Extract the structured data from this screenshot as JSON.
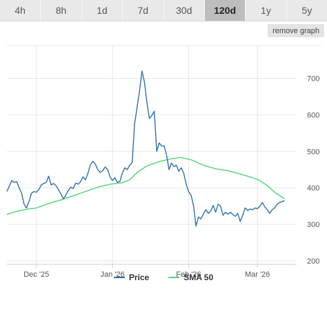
{
  "range_tabs": [
    {
      "label": "4h",
      "active": false
    },
    {
      "label": "8h",
      "active": false
    },
    {
      "label": "1d",
      "active": false
    },
    {
      "label": "7d",
      "active": false
    },
    {
      "label": "30d",
      "active": false
    },
    {
      "label": "120d",
      "active": true
    },
    {
      "label": "1y",
      "active": false
    },
    {
      "label": "5y",
      "active": false
    }
  ],
  "remove_graph_label": "remove graph",
  "chart_data": {
    "type": "line",
    "title": "",
    "xlabel": "",
    "ylabel": "",
    "ylim": [
      200,
      750
    ],
    "xlim": [
      "2025-11-19",
      "2026-03-20"
    ],
    "y_ticks": [
      200,
      300,
      400,
      500,
      600,
      700
    ],
    "x_ticks": [
      {
        "label": "Dec '25",
        "date": "2025-12-01"
      },
      {
        "label": "Jan '26",
        "date": "2026-01-01"
      },
      {
        "label": "Feb '26",
        "date": "2026-02-01"
      },
      {
        "label": "Mar '26",
        "date": "2026-03-01"
      }
    ],
    "grid": true,
    "legend_position": "bottom",
    "series": [
      {
        "name": "Price",
        "color": "#2f6fa8",
        "points": [
          [
            "2025-11-19",
            390
          ],
          [
            "2025-11-20",
            405
          ],
          [
            "2025-11-21",
            420
          ],
          [
            "2025-11-22",
            415
          ],
          [
            "2025-11-23",
            417
          ],
          [
            "2025-11-24",
            400
          ],
          [
            "2025-11-25",
            385
          ],
          [
            "2025-11-26",
            355
          ],
          [
            "2025-11-27",
            345
          ],
          [
            "2025-11-28",
            362
          ],
          [
            "2025-11-29",
            385
          ],
          [
            "2025-11-30",
            390
          ],
          [
            "2025-12-01",
            388
          ],
          [
            "2025-12-02",
            395
          ],
          [
            "2025-12-03",
            408
          ],
          [
            "2025-12-04",
            412
          ],
          [
            "2025-12-05",
            415
          ],
          [
            "2025-12-06",
            432
          ],
          [
            "2025-12-07",
            408
          ],
          [
            "2025-12-08",
            412
          ],
          [
            "2025-12-09",
            406
          ],
          [
            "2025-12-10",
            395
          ],
          [
            "2025-12-11",
            383
          ],
          [
            "2025-12-12",
            370
          ],
          [
            "2025-12-13",
            380
          ],
          [
            "2025-12-14",
            393
          ],
          [
            "2025-12-15",
            402
          ],
          [
            "2025-12-16",
            398
          ],
          [
            "2025-12-17",
            413
          ],
          [
            "2025-12-18",
            410
          ],
          [
            "2025-12-19",
            417
          ],
          [
            "2025-12-20",
            430
          ],
          [
            "2025-12-21",
            422
          ],
          [
            "2025-12-22",
            440
          ],
          [
            "2025-12-23",
            463
          ],
          [
            "2025-12-24",
            473
          ],
          [
            "2025-12-25",
            465
          ],
          [
            "2025-12-26",
            450
          ],
          [
            "2025-12-27",
            442
          ],
          [
            "2025-12-28",
            447
          ],
          [
            "2025-12-29",
            457
          ],
          [
            "2025-12-30",
            450
          ],
          [
            "2025-12-31",
            430
          ],
          [
            "2026-01-01",
            420
          ],
          [
            "2026-01-02",
            428
          ],
          [
            "2026-01-03",
            415
          ],
          [
            "2026-01-04",
            418
          ],
          [
            "2026-01-05",
            440
          ],
          [
            "2026-01-06",
            455
          ],
          [
            "2026-01-07",
            450
          ],
          [
            "2026-01-08",
            462
          ],
          [
            "2026-01-09",
            470
          ],
          [
            "2026-01-10",
            575
          ],
          [
            "2026-01-11",
            620
          ],
          [
            "2026-01-12",
            665
          ],
          [
            "2026-01-13",
            720
          ],
          [
            "2026-01-14",
            690
          ],
          [
            "2026-01-15",
            635
          ],
          [
            "2026-01-16",
            590
          ],
          [
            "2026-01-17",
            598
          ],
          [
            "2026-01-18",
            610
          ],
          [
            "2026-01-19",
            500
          ],
          [
            "2026-01-20",
            523
          ],
          [
            "2026-01-21",
            515
          ],
          [
            "2026-01-22",
            515
          ],
          [
            "2026-01-23",
            490
          ],
          [
            "2026-01-24",
            450
          ],
          [
            "2026-01-25",
            468
          ],
          [
            "2026-01-26",
            458
          ],
          [
            "2026-01-27",
            462
          ],
          [
            "2026-01-28",
            445
          ],
          [
            "2026-01-29",
            455
          ],
          [
            "2026-01-30",
            440
          ],
          [
            "2026-01-31",
            410
          ],
          [
            "2026-02-01",
            390
          ],
          [
            "2026-02-02",
            380
          ],
          [
            "2026-02-03",
            350
          ],
          [
            "2026-02-04",
            295
          ],
          [
            "2026-02-05",
            320
          ],
          [
            "2026-02-06",
            315
          ],
          [
            "2026-02-07",
            328
          ],
          [
            "2026-02-08",
            340
          ],
          [
            "2026-02-09",
            330
          ],
          [
            "2026-02-10",
            337
          ],
          [
            "2026-02-11",
            352
          ],
          [
            "2026-02-12",
            333
          ],
          [
            "2026-02-13",
            355
          ],
          [
            "2026-02-14",
            350
          ],
          [
            "2026-02-15",
            325
          ],
          [
            "2026-02-16",
            333
          ],
          [
            "2026-02-17",
            328
          ],
          [
            "2026-02-18",
            333
          ],
          [
            "2026-02-19",
            327
          ],
          [
            "2026-02-20",
            322
          ],
          [
            "2026-02-21",
            330
          ],
          [
            "2026-02-22",
            308
          ],
          [
            "2026-02-23",
            325
          ],
          [
            "2026-02-24",
            345
          ],
          [
            "2026-02-25",
            338
          ],
          [
            "2026-02-26",
            342
          ],
          [
            "2026-02-27",
            340
          ],
          [
            "2026-02-28",
            345
          ],
          [
            "2026-03-01",
            343
          ],
          [
            "2026-03-02",
            350
          ],
          [
            "2026-03-03",
            360
          ],
          [
            "2026-03-04",
            348
          ],
          [
            "2026-03-05",
            340
          ],
          [
            "2026-03-06",
            330
          ],
          [
            "2026-03-07",
            340
          ],
          [
            "2026-03-08",
            345
          ],
          [
            "2026-03-09",
            355
          ],
          [
            "2026-03-10",
            360
          ],
          [
            "2026-03-11",
            362
          ],
          [
            "2026-03-12",
            365
          ]
        ]
      },
      {
        "name": "SMA 50",
        "color": "#52d07a",
        "points": [
          [
            "2025-11-19",
            327
          ],
          [
            "2025-11-22",
            334
          ],
          [
            "2025-11-26",
            340
          ],
          [
            "2025-12-01",
            345
          ],
          [
            "2025-12-06",
            357
          ],
          [
            "2025-12-11",
            367
          ],
          [
            "2025-12-16",
            378
          ],
          [
            "2025-12-21",
            390
          ],
          [
            "2025-12-26",
            402
          ],
          [
            "2025-12-31",
            410
          ],
          [
            "2026-01-05",
            414
          ],
          [
            "2026-01-08",
            422
          ],
          [
            "2026-01-11",
            442
          ],
          [
            "2026-01-15",
            460
          ],
          [
            "2026-01-20",
            472
          ],
          [
            "2026-01-25",
            480
          ],
          [
            "2026-01-29",
            483
          ],
          [
            "2026-02-02",
            477
          ],
          [
            "2026-02-07",
            462
          ],
          [
            "2026-02-12",
            452
          ],
          [
            "2026-02-17",
            447
          ],
          [
            "2026-02-22",
            438
          ],
          [
            "2026-02-27",
            428
          ],
          [
            "2026-03-02",
            420
          ],
          [
            "2026-03-05",
            406
          ],
          [
            "2026-03-08",
            388
          ],
          [
            "2026-03-11",
            375
          ],
          [
            "2026-03-12",
            370
          ]
        ]
      }
    ]
  }
}
